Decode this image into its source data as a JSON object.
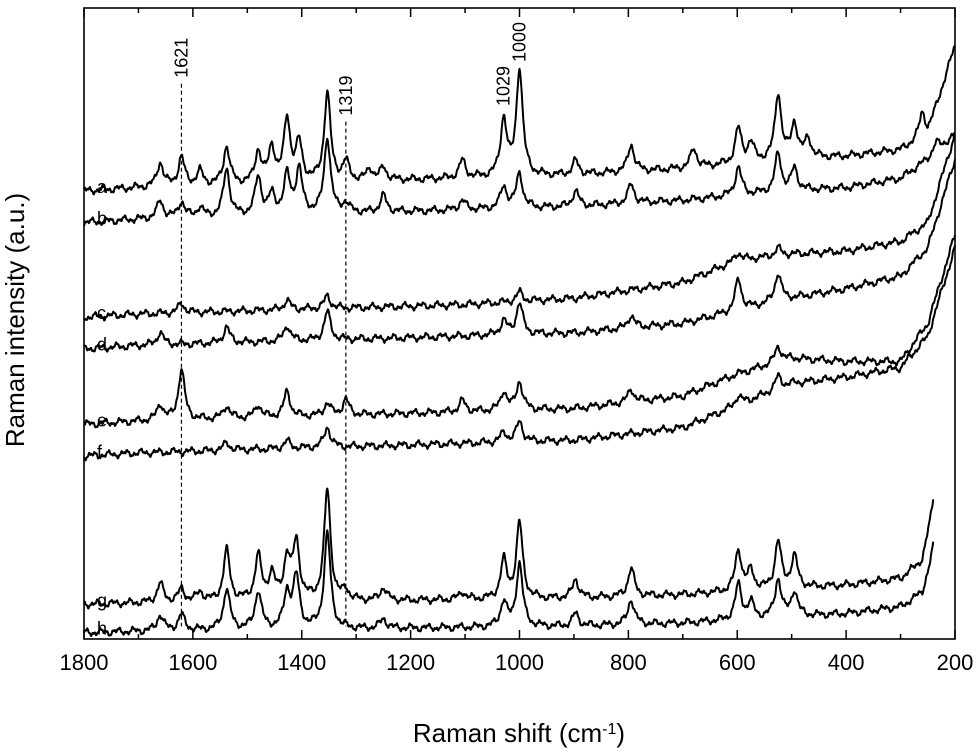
{
  "chart_data": {
    "type": "line",
    "title": "",
    "xlabel": "Raman shift (cm",
    "xlabel_superscript": "-1",
    "xlabel_suffix": ")",
    "ylabel": "Raman intensity (a.u.)",
    "x_reversed": true,
    "xlim": [
      1800,
      200
    ],
    "ylim": [
      0,
      100
    ],
    "x_ticks": [
      1800,
      1600,
      1400,
      1200,
      1000,
      800,
      600,
      400,
      200
    ],
    "x_tick_labels": [
      "1800",
      "1600",
      "1400",
      "1200",
      "1000",
      "800",
      "600",
      "400",
      "200"
    ],
    "y_ticks_shown": false,
    "grid": false,
    "legend": "none",
    "reference_lines": [
      {
        "x": 1621,
        "label": "1621",
        "y_top": 88,
        "y_bottom": 2
      },
      {
        "x": 1319,
        "label": "1319",
        "y_top": 82,
        "y_bottom": 2
      }
    ],
    "peak_annotations": [
      {
        "x": 1029,
        "label": "1029"
      },
      {
        "x": 1000,
        "label": "1000"
      }
    ],
    "series": [
      {
        "name": "a",
        "baseline": [
          [
            1800,
            71
          ],
          [
            1700,
            71.5
          ],
          [
            1500,
            72
          ],
          [
            1300,
            72.5
          ],
          [
            1100,
            73
          ],
          [
            900,
            73.5
          ],
          [
            700,
            74.5
          ],
          [
            500,
            76
          ],
          [
            400,
            76.5
          ],
          [
            300,
            77.5
          ],
          [
            250,
            80
          ],
          [
            200,
            94
          ]
        ],
        "peaks": [
          [
            1660,
            3.8
          ],
          [
            1621,
            4.5
          ],
          [
            1587,
            2.2
          ],
          [
            1538,
            6
          ],
          [
            1480,
            5
          ],
          [
            1455,
            5.5
          ],
          [
            1427,
            10
          ],
          [
            1405,
            6
          ],
          [
            1353,
            14
          ],
          [
            1319,
            3
          ],
          [
            1275,
            1.8
          ],
          [
            1250,
            2
          ],
          [
            1105,
            2.8
          ],
          [
            1029,
            9
          ],
          [
            1000,
            17
          ],
          [
            897,
            2.2
          ],
          [
            795,
            4.3
          ],
          [
            680,
            3
          ],
          [
            598,
            5.5
          ],
          [
            575,
            3
          ],
          [
            525,
            10.5
          ],
          [
            495,
            5.5
          ],
          [
            470,
            3
          ],
          [
            260,
            4
          ]
        ]
      },
      {
        "name": "b",
        "baseline": [
          [
            1800,
            66
          ],
          [
            1700,
            66.5
          ],
          [
            1500,
            67
          ],
          [
            1300,
            67.5
          ],
          [
            1100,
            68
          ],
          [
            900,
            68.5
          ],
          [
            700,
            69.5
          ],
          [
            500,
            71
          ],
          [
            400,
            71.5
          ],
          [
            300,
            73
          ],
          [
            250,
            76
          ],
          [
            200,
            80
          ]
        ],
        "peaks": [
          [
            1660,
            2.8
          ],
          [
            1621,
            2.5
          ],
          [
            1587,
            1.5
          ],
          [
            1538,
            7.5
          ],
          [
            1480,
            6
          ],
          [
            1455,
            3
          ],
          [
            1427,
            6
          ],
          [
            1405,
            7
          ],
          [
            1353,
            12
          ],
          [
            1319,
            1.5
          ],
          [
            1250,
            2.6
          ],
          [
            1105,
            1.5
          ],
          [
            1029,
            3.5
          ],
          [
            1000,
            5.5
          ],
          [
            897,
            2.5
          ],
          [
            795,
            3
          ],
          [
            598,
            4.5
          ],
          [
            525,
            6
          ],
          [
            495,
            3.5
          ],
          [
            235,
            1.5
          ]
        ]
      },
      {
        "name": "c",
        "baseline": [
          [
            1800,
            51
          ],
          [
            1700,
            51.5
          ],
          [
            1500,
            52
          ],
          [
            1300,
            52.5
          ],
          [
            1100,
            53
          ],
          [
            900,
            54
          ],
          [
            700,
            56.5
          ],
          [
            600,
            60
          ],
          [
            500,
            61
          ],
          [
            400,
            61.5
          ],
          [
            300,
            63
          ],
          [
            250,
            66
          ],
          [
            200,
            80
          ]
        ],
        "peaks": [
          [
            1621,
            1.5
          ],
          [
            1427,
            1.5
          ],
          [
            1353,
            2
          ],
          [
            1000,
            1.5
          ],
          [
            598,
            1.2
          ],
          [
            525,
            1.2
          ]
        ]
      },
      {
        "name": "d",
        "baseline": [
          [
            1800,
            46
          ],
          [
            1700,
            46.5
          ],
          [
            1500,
            47
          ],
          [
            1300,
            47.5
          ],
          [
            1100,
            48
          ],
          [
            900,
            48.5
          ],
          [
            700,
            50
          ],
          [
            600,
            52
          ],
          [
            500,
            54
          ],
          [
            400,
            55.5
          ],
          [
            300,
            57.5
          ],
          [
            250,
            62
          ],
          [
            200,
            76
          ]
        ],
        "peaks": [
          [
            1660,
            2
          ],
          [
            1538,
            2.5
          ],
          [
            1427,
            2.5
          ],
          [
            1353,
            4.5
          ],
          [
            1029,
            2.2
          ],
          [
            1000,
            5
          ],
          [
            795,
            2
          ],
          [
            598,
            5
          ],
          [
            525,
            4.5
          ]
        ]
      },
      {
        "name": "e",
        "baseline": [
          [
            1800,
            34
          ],
          [
            1700,
            34.5
          ],
          [
            1500,
            35
          ],
          [
            1300,
            35.5
          ],
          [
            1100,
            36
          ],
          [
            900,
            36.5
          ],
          [
            700,
            38.5
          ],
          [
            600,
            42
          ],
          [
            500,
            44.5
          ],
          [
            400,
            44
          ],
          [
            300,
            44
          ],
          [
            250,
            50
          ],
          [
            200,
            64
          ]
        ],
        "peaks": [
          [
            1660,
            2.5
          ],
          [
            1621,
            8
          ],
          [
            1538,
            2
          ],
          [
            1480,
            2
          ],
          [
            1427,
            4
          ],
          [
            1353,
            2
          ],
          [
            1319,
            2.5
          ],
          [
            1105,
            1.8
          ],
          [
            1029,
            3
          ],
          [
            1000,
            4.5
          ],
          [
            795,
            2
          ],
          [
            525,
            2.5
          ]
        ]
      },
      {
        "name": "f",
        "baseline": [
          [
            1800,
            29
          ],
          [
            1700,
            29.5
          ],
          [
            1500,
            30
          ],
          [
            1300,
            30.5
          ],
          [
            1100,
            31
          ],
          [
            900,
            31.5
          ],
          [
            700,
            33.5
          ],
          [
            600,
            37
          ],
          [
            500,
            40.5
          ],
          [
            400,
            41.5
          ],
          [
            300,
            43
          ],
          [
            250,
            48
          ],
          [
            200,
            62
          ]
        ],
        "peaks": [
          [
            1538,
            1.2
          ],
          [
            1427,
            1.2
          ],
          [
            1353,
            3.2
          ],
          [
            1029,
            1.5
          ],
          [
            1000,
            3.2
          ],
          [
            598,
            1.5
          ],
          [
            525,
            2
          ]
        ]
      },
      {
        "name": "g",
        "baseline": [
          [
            1800,
            5.5
          ],
          [
            1700,
            5.7
          ],
          [
            1500,
            6
          ],
          [
            1300,
            6
          ],
          [
            1100,
            6.2
          ],
          [
            900,
            6.4
          ],
          [
            700,
            7
          ],
          [
            600,
            7.5
          ],
          [
            500,
            8
          ],
          [
            400,
            8.5
          ],
          [
            300,
            9.5
          ],
          [
            260,
            12
          ],
          [
            240,
            19
          ]
        ],
        "peaks": [
          [
            1660,
            3
          ],
          [
            1621,
            2
          ],
          [
            1587,
            1.5
          ],
          [
            1538,
            8
          ],
          [
            1480,
            7
          ],
          [
            1455,
            4
          ],
          [
            1427,
            6.5
          ],
          [
            1410,
            9
          ],
          [
            1353,
            17.5
          ],
          [
            1319,
            1.5
          ],
          [
            1250,
            2
          ],
          [
            1105,
            1.2
          ],
          [
            1029,
            6
          ],
          [
            1000,
            12
          ],
          [
            897,
            3
          ],
          [
            795,
            4.5
          ],
          [
            598,
            6.5
          ],
          [
            575,
            3
          ],
          [
            525,
            7.5
          ],
          [
            495,
            5
          ],
          [
            225,
            19
          ]
        ]
      },
      {
        "name": "h",
        "baseline": [
          [
            1800,
            1
          ],
          [
            1700,
            1.2
          ],
          [
            1500,
            1.5
          ],
          [
            1300,
            1.6
          ],
          [
            1100,
            1.8
          ],
          [
            900,
            2
          ],
          [
            700,
            2.5
          ],
          [
            600,
            3
          ],
          [
            500,
            3.5
          ],
          [
            400,
            4
          ],
          [
            300,
            5
          ],
          [
            260,
            7
          ],
          [
            240,
            12
          ]
        ],
        "peaks": [
          [
            1660,
            2.5
          ],
          [
            1621,
            2.5
          ],
          [
            1538,
            6.5
          ],
          [
            1480,
            6
          ],
          [
            1427,
            5.5
          ],
          [
            1410,
            8
          ],
          [
            1353,
            15
          ],
          [
            1250,
            1.5
          ],
          [
            1029,
            4
          ],
          [
            1000,
            10
          ],
          [
            897,
            2
          ],
          [
            795,
            4
          ],
          [
            598,
            5.5
          ],
          [
            575,
            2.5
          ],
          [
            525,
            6
          ],
          [
            495,
            4
          ],
          [
            225,
            16
          ]
        ]
      }
    ]
  }
}
